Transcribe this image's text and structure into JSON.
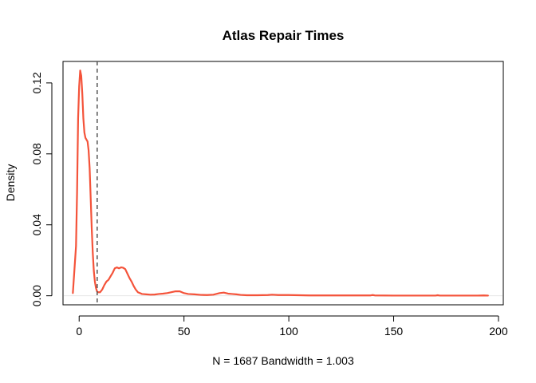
{
  "chart_data": {
    "type": "line",
    "title": "Atlas Repair Times",
    "xlabel": "N = 1687   Bandwidth = 1.003",
    "ylabel": "Density",
    "xlim": [
      -7.7,
      202.3
    ],
    "ylim": [
      -0.0051,
      0.1321
    ],
    "x_ticks": [
      0,
      50,
      100,
      150,
      200
    ],
    "x_tick_labels": [
      "0",
      "50",
      "100",
      "150",
      "200"
    ],
    "y_ticks": [
      0.0,
      0.04,
      0.08,
      0.12
    ],
    "y_tick_labels": [
      "0.00",
      "0.04",
      "0.08",
      "0.12"
    ],
    "grid": false,
    "line_color": "#f4533a",
    "reference_line": {
      "x": 8.6,
      "style": "dashed",
      "color": "#555555"
    },
    "baseline_color": "#e6e6e6",
    "series": [
      {
        "x": [
          -3.0,
          -1.5,
          -1.0,
          -0.5,
          0.0,
          0.5,
          1.0,
          1.5,
          2.0,
          2.5,
          3.0,
          3.5,
          4.0,
          4.5,
          5.0,
          5.5,
          6.0,
          6.5,
          7.0,
          7.5,
          8.0,
          8.5,
          9.0,
          10.0,
          11.0,
          12.0,
          13.0,
          14.0,
          15.0,
          16.0,
          17.0,
          18.0,
          19.0,
          20.0,
          21.0,
          22.0,
          23.0,
          24.0,
          25.0,
          26.0,
          27.0,
          28.0,
          30.0,
          32.0,
          34.0,
          36.0,
          38.0,
          40.0,
          42.0,
          44.0,
          46.0,
          48.0,
          50.0,
          52.0,
          55.0,
          58.0,
          61.0,
          64.0,
          67.0,
          69.0,
          71.0,
          73.0,
          75.0,
          77.0,
          80.0,
          85.0,
          90.0,
          92.0,
          95.0,
          100.0,
          110.0,
          120.0,
          130.0,
          139.0,
          140.0,
          141.0,
          150.0,
          160.0,
          170.0,
          171.0,
          172.0,
          180.0,
          185.0,
          190.0,
          193.0,
          195.0
        ],
        "y": [
          0.0015,
          0.028,
          0.058,
          0.1,
          0.118,
          0.127,
          0.124,
          0.114,
          0.1,
          0.092,
          0.089,
          0.088,
          0.087,
          0.082,
          0.072,
          0.055,
          0.038,
          0.024,
          0.014,
          0.008,
          0.0045,
          0.0025,
          0.002,
          0.002,
          0.0035,
          0.006,
          0.008,
          0.009,
          0.011,
          0.013,
          0.0155,
          0.016,
          0.0155,
          0.016,
          0.0158,
          0.015,
          0.0125,
          0.01,
          0.008,
          0.0055,
          0.0035,
          0.002,
          0.001,
          0.0008,
          0.0006,
          0.0007,
          0.001,
          0.0012,
          0.0015,
          0.002,
          0.0025,
          0.0025,
          0.0015,
          0.001,
          0.0008,
          0.0005,
          0.0004,
          0.0006,
          0.0015,
          0.0018,
          0.0012,
          0.001,
          0.0008,
          0.0005,
          0.0003,
          0.0003,
          0.0004,
          0.0006,
          0.0004,
          0.0004,
          0.0002,
          0.0002,
          0.0002,
          0.0002,
          0.0004,
          0.0002,
          0.0001,
          0.0001,
          0.0001,
          0.0003,
          0.0001,
          0.0001,
          0.0001,
          0.0001,
          0.0002,
          0.0001
        ]
      }
    ]
  }
}
